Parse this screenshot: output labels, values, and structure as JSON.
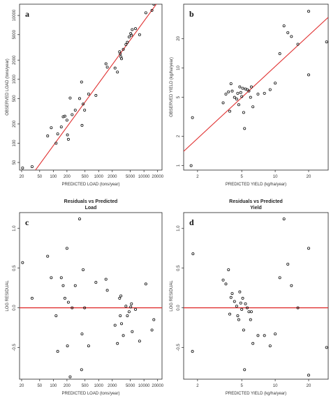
{
  "chart_data": [
    {
      "type": "scatter",
      "panel_label": "a",
      "title": "",
      "xlabel": "PREDICTED LOAD (tons/year)",
      "ylabel": "OBSERVED LOAD (tons/year)",
      "xscale": "log",
      "yscale": "log",
      "xlim": [
        18,
        25000
      ],
      "ylim": [
        38,
        15000
      ],
      "xticks": [
        20,
        50,
        100,
        200,
        500,
        1000,
        2000,
        5000,
        10000,
        20000
      ],
      "xtick_labels": [
        "20",
        "50",
        "100",
        "200",
        "500",
        "1000",
        "2000",
        "5000",
        "10000",
        "20000"
      ],
      "yticks": [
        50,
        100,
        200,
        500,
        1000,
        2000,
        5000,
        10000
      ],
      "ytick_labels": [
        "50",
        "100",
        "200",
        "500",
        "1000",
        "2000",
        "5000",
        "10000"
      ],
      "line": {
        "color": "#e03030",
        "x": [
          35,
          20000
        ],
        "y": [
          33,
          16000
        ]
      },
      "points": [
        [
          21,
          41
        ],
        [
          34,
          43
        ],
        [
          75,
          130
        ],
        [
          90,
          175
        ],
        [
          115,
          100
        ],
        [
          125,
          140
        ],
        [
          150,
          180
        ],
        [
          165,
          260
        ],
        [
          180,
          265
        ],
        [
          200,
          230
        ],
        [
          205,
          135
        ],
        [
          215,
          115
        ],
        [
          235,
          510
        ],
        [
          260,
          280
        ],
        [
          305,
          330
        ],
        [
          380,
          500
        ],
        [
          420,
          910
        ],
        [
          430,
          190
        ],
        [
          455,
          410
        ],
        [
          490,
          330
        ],
        [
          600,
          590
        ],
        [
          870,
          560
        ],
        [
          1450,
          1750
        ],
        [
          1550,
          1550
        ],
        [
          2300,
          1500
        ],
        [
          2600,
          1300
        ],
        [
          2900,
          2700
        ],
        [
          3000,
          2500
        ],
        [
          3100,
          2250
        ],
        [
          3200,
          2100
        ],
        [
          3500,
          2950
        ],
        [
          4000,
          3500
        ],
        [
          4300,
          3800
        ],
        [
          4700,
          4600
        ],
        [
          5100,
          5200
        ],
        [
          5300,
          4900
        ],
        [
          5500,
          6000
        ],
        [
          6500,
          6200
        ],
        [
          8000,
          5000
        ],
        [
          11000,
          11000
        ],
        [
          15000,
          12000
        ],
        [
          16500,
          15000
        ]
      ]
    },
    {
      "type": "scatter",
      "panel_label": "b",
      "title": "",
      "xlabel": "PREDICTED YIELD (kg/ha/year)",
      "ylabel": "OBSERVED YIELD (kg/ha/year)",
      "xscale": "log",
      "yscale": "log",
      "xlim": [
        1.5,
        30
      ],
      "ylim": [
        0.9,
        45
      ],
      "xticks": [
        2,
        5,
        10,
        20
      ],
      "xtick_labels": [
        "2",
        "5",
        "10",
        "20"
      ],
      "yticks": [
        1,
        2,
        5,
        10,
        20
      ],
      "ytick_labels": [
        "1",
        "2",
        "5",
        "10",
        "20"
      ],
      "line": {
        "color": "#e03030",
        "x": [
          1.5,
          30
        ],
        "y": [
          1.4,
          33
        ]
      },
      "points": [
        [
          1.75,
          1.0
        ],
        [
          1.8,
          3.1
        ],
        [
          3.4,
          4.4
        ],
        [
          3.6,
          5.4
        ],
        [
          3.8,
          5.7
        ],
        [
          3.9,
          3.6
        ],
        [
          4.0,
          6.9
        ],
        [
          4.1,
          5.8
        ],
        [
          4.3,
          5.0
        ],
        [
          4.5,
          4.8
        ],
        [
          4.6,
          5.5
        ],
        [
          4.7,
          4.2
        ],
        [
          4.8,
          6.4
        ],
        [
          4.9,
          5.6
        ],
        [
          5.0,
          5.1
        ],
        [
          5.1,
          6.2
        ],
        [
          5.2,
          3.5
        ],
        [
          5.3,
          2.4
        ],
        [
          5.4,
          6.1
        ],
        [
          5.6,
          6.0
        ],
        [
          5.8,
          5.8
        ],
        [
          6.0,
          5.0
        ],
        [
          6.1,
          6.4
        ],
        [
          6.3,
          4.0
        ],
        [
          7.0,
          5.4
        ],
        [
          8.0,
          5.5
        ],
        [
          9.0,
          6.0
        ],
        [
          10.0,
          7.0
        ],
        [
          11.0,
          14.0
        ],
        [
          12.0,
          27.0
        ],
        [
          13.0,
          23.0
        ],
        [
          14.0,
          21.0
        ],
        [
          16.0,
          17.5
        ],
        [
          20.0,
          8.5
        ],
        [
          20.0,
          38.0
        ],
        [
          29.0,
          18.5
        ]
      ]
    },
    {
      "type": "scatter",
      "panel_label": "c",
      "title": "Residuals vs Predicted",
      "subtitle": "Load",
      "xlabel": "PREDICTED LOAD (tons/year)",
      "ylabel": "LOG RESIDUAL",
      "xscale": "log",
      "yscale": "linear",
      "xlim": [
        18,
        25000
      ],
      "ylim": [
        -0.9,
        1.2
      ],
      "xticks": [
        20,
        50,
        100,
        200,
        500,
        1000,
        2000,
        5000,
        10000,
        20000
      ],
      "xtick_labels": [
        "20",
        "50",
        "100",
        "200",
        "500",
        "1000",
        "2000",
        "5000",
        "10000",
        "20000"
      ],
      "yticks": [
        -0.5,
        0.0,
        0.5,
        1.0
      ],
      "ytick_labels": [
        "-0.5",
        "0.0",
        "0.5",
        "1.0"
      ],
      "hline": {
        "y": 0,
        "color": "#e03030"
      },
      "points": [
        [
          21,
          0.57
        ],
        [
          34,
          0.12
        ],
        [
          75,
          0.65
        ],
        [
          90,
          0.38
        ],
        [
          115,
          -0.1
        ],
        [
          125,
          -0.55
        ],
        [
          150,
          0.38
        ],
        [
          165,
          0.28
        ],
        [
          180,
          0.12
        ],
        [
          200,
          0.75
        ],
        [
          205,
          -0.48
        ],
        [
          215,
          0.07
        ],
        [
          235,
          -0.87
        ],
        [
          260,
          0.0
        ],
        [
          305,
          0.28
        ],
        [
          380,
          1.12
        ],
        [
          420,
          -0.78
        ],
        [
          430,
          -0.33
        ],
        [
          455,
          0.48
        ],
        [
          490,
          0.0
        ],
        [
          600,
          -0.48
        ],
        [
          870,
          0.32
        ],
        [
          1450,
          0.36
        ],
        [
          1550,
          0.22
        ],
        [
          2300,
          -0.22
        ],
        [
          2600,
          -0.45
        ],
        [
          2900,
          0.12
        ],
        [
          3000,
          -0.1
        ],
        [
          3100,
          0.15
        ],
        [
          3200,
          -0.2
        ],
        [
          3500,
          -0.35
        ],
        [
          4000,
          0.02
        ],
        [
          4300,
          -0.1
        ],
        [
          4700,
          -0.05
        ],
        [
          5100,
          0.01
        ],
        [
          5300,
          0.05
        ],
        [
          5500,
          -0.3
        ],
        [
          6500,
          -0.02
        ],
        [
          8000,
          -0.42
        ],
        [
          11000,
          0.3
        ],
        [
          15000,
          -0.28
        ],
        [
          16500,
          -0.15
        ]
      ]
    },
    {
      "type": "scatter",
      "panel_label": "d",
      "title": "Residuals vs Predicted",
      "subtitle": "Yield",
      "xlabel": "PREDICTED YIELD (kg/ha/year)",
      "ylabel": "LOG RESIDUAL",
      "xscale": "log",
      "yscale": "linear",
      "xlim": [
        1.5,
        30
      ],
      "ylim": [
        -0.9,
        1.2
      ],
      "xticks": [
        2,
        5,
        10,
        20
      ],
      "xtick_labels": [
        "2",
        "5",
        "10",
        "20"
      ],
      "yticks": [
        -0.5,
        0.0,
        0.5,
        1.0
      ],
      "ytick_labels": [
        "-0.5",
        "0.0",
        "0.5",
        "1.0"
      ],
      "hline": {
        "y": 0,
        "color": "#e03030"
      },
      "points": [
        [
          1.8,
          -0.55
        ],
        [
          1.82,
          0.68
        ],
        [
          3.4,
          0.35
        ],
        [
          3.6,
          0.3
        ],
        [
          3.8,
          0.48
        ],
        [
          3.9,
          -0.08
        ],
        [
          4.0,
          0.13
        ],
        [
          4.1,
          0.18
        ],
        [
          4.3,
          0.08
        ],
        [
          4.5,
          0.02
        ],
        [
          4.6,
          -0.1
        ],
        [
          4.7,
          -0.15
        ],
        [
          4.8,
          0.2
        ],
        [
          4.9,
          0.06
        ],
        [
          5.0,
          -0.02
        ],
        [
          5.1,
          0.12
        ],
        [
          5.2,
          -0.28
        ],
        [
          5.3,
          -0.78
        ],
        [
          5.4,
          0.05
        ],
        [
          5.6,
          0.0
        ],
        [
          5.8,
          -0.05
        ],
        [
          6.0,
          -0.15
        ],
        [
          6.1,
          -0.05
        ],
        [
          6.3,
          -0.45
        ],
        [
          7.0,
          -0.35
        ],
        [
          8.0,
          -0.35
        ],
        [
          9.0,
          -0.48
        ],
        [
          10.0,
          -0.33
        ],
        [
          11.0,
          0.38
        ],
        [
          12.0,
          1.12
        ],
        [
          13.0,
          0.55
        ],
        [
          14.0,
          0.28
        ],
        [
          16.0,
          0.0
        ],
        [
          20.0,
          -0.85
        ],
        [
          20.0,
          0.75
        ],
        [
          29.0,
          -0.5
        ]
      ]
    }
  ]
}
